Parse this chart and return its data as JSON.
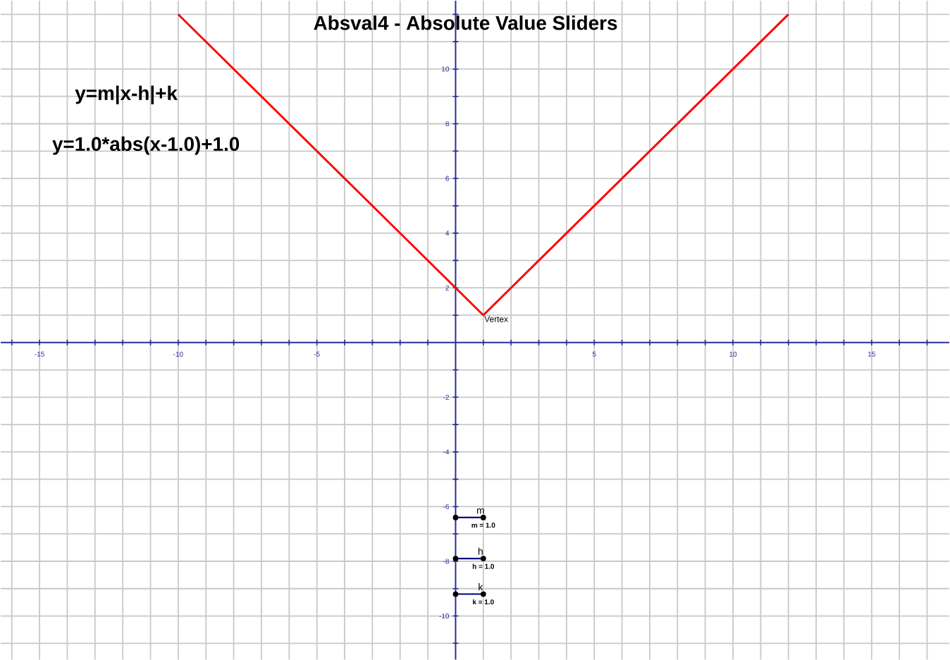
{
  "chart_data": {
    "type": "line",
    "title": "Absval4 - Absolute Value Sliders",
    "xlim": [
      -16.4,
      17.8
    ],
    "ylim": [
      -11.6,
      12.5
    ],
    "xticks": [
      {
        "value": -16,
        "label": null
      },
      -15,
      {
        "value": -14,
        "label": null
      },
      {
        "value": -13,
        "label": null
      },
      {
        "value": -12,
        "label": null
      },
      {
        "value": -11,
        "label": null
      },
      -10,
      {
        "value": -9,
        "label": null
      },
      {
        "value": -8,
        "label": null
      },
      {
        "value": -7,
        "label": null
      },
      {
        "value": -6,
        "label": null
      },
      -5,
      {
        "value": -4,
        "label": null
      },
      {
        "value": -3,
        "label": null
      },
      {
        "value": -2,
        "label": null
      },
      {
        "value": -1,
        "label": null
      },
      {
        "value": 0,
        "label": null
      },
      {
        "value": 1,
        "label": null
      },
      {
        "value": 2,
        "label": null
      },
      {
        "value": 3,
        "label": null
      },
      {
        "value": 4,
        "label": null
      },
      5,
      {
        "value": 6,
        "label": null
      },
      {
        "value": 7,
        "label": null
      },
      {
        "value": 8,
        "label": null
      },
      {
        "value": 9,
        "label": null
      },
      10,
      {
        "value": 11,
        "label": null
      },
      {
        "value": 12,
        "label": null
      },
      {
        "value": 13,
        "label": null
      },
      {
        "value": 14,
        "label": null
      },
      15,
      {
        "value": 16,
        "label": null
      },
      {
        "value": 17,
        "label": null
      }
    ],
    "yticks": [
      {
        "value": -11,
        "label": null
      },
      -10,
      {
        "value": -9,
        "label": null
      },
      -8,
      {
        "value": -7,
        "label": null
      },
      -6,
      {
        "value": -5,
        "label": null
      },
      -4,
      {
        "value": -3,
        "label": null
      },
      -2,
      {
        "value": -1,
        "label": null
      },
      {
        "value": 0,
        "label": null
      },
      {
        "value": 1,
        "label": null
      },
      2,
      {
        "value": 3,
        "label": null
      },
      4,
      {
        "value": 5,
        "label": null
      },
      6,
      {
        "value": 7,
        "label": null
      },
      8,
      {
        "value": 9,
        "label": null
      },
      10,
      {
        "value": 11,
        "label": null
      },
      {
        "value": 12,
        "label": null
      }
    ],
    "grid": true,
    "series": [
      {
        "color": "#ff0000",
        "x": [
          -10,
          1,
          12
        ],
        "values": [
          12,
          1,
          12
        ],
        "marker": "none"
      },
      {
        "color": "#000080",
        "x": [
          0,
          1
        ],
        "values": [
          -6.4,
          -6.4
        ],
        "marker": "circle"
      },
      {
        "color": "#000080",
        "x": [
          0,
          1
        ],
        "values": [
          -7.9,
          -7.9
        ],
        "marker": "circle"
      },
      {
        "color": "#000080",
        "x": [
          0,
          1
        ],
        "values": [
          -9.2,
          -9.2
        ],
        "marker": "circle"
      }
    ],
    "annotations": [
      "y=m|x-h|+k",
      "y=1.0*abs(x-1.0)+1.0",
      {
        "text": "Vertex",
        "x": 1,
        "y": 1
      },
      "m",
      "m = 1.0",
      "h",
      "h = 1.0",
      "k",
      "k = 1.0"
    ]
  }
}
